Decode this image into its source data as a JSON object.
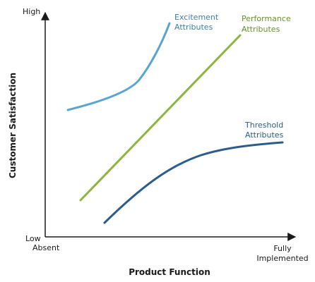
{
  "diagram": {
    "y_axis": {
      "title": "Customer Satisfaction",
      "high_label": "High",
      "low_label": "Low"
    },
    "x_axis": {
      "title": "Product Function",
      "start_label": "Absent",
      "end_label_line1": "Fully",
      "end_label_line2": "Implemented"
    },
    "curves": {
      "excitement": {
        "label_line1": "Excitement",
        "label_line2": "Attributes",
        "color": "#5aa5cf"
      },
      "performance": {
        "label_line1": "Performance",
        "label_line2": "Attributes",
        "color": "#8db43e"
      },
      "threshold": {
        "label_line1": "Threshold",
        "label_line2": "Attributes",
        "color": "#2b5c8a"
      }
    },
    "axis_color": "#1a1a1a"
  }
}
